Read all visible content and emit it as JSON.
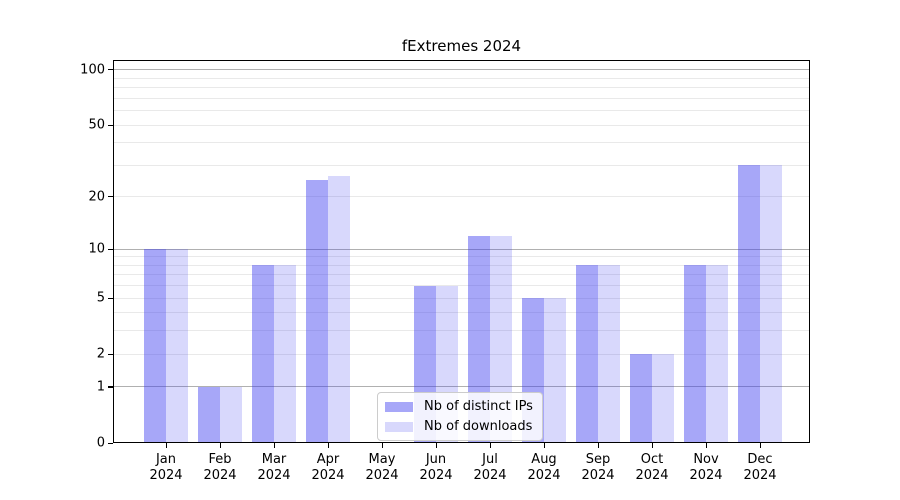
{
  "chart_data": {
    "type": "bar",
    "title": "fExtremes 2024",
    "categories": [
      "Jan 2024",
      "Feb 2024",
      "Mar 2024",
      "Apr 2024",
      "May 2024",
      "Jun 2024",
      "Jul 2024",
      "Aug 2024",
      "Sep 2024",
      "Oct 2024",
      "Nov 2024",
      "Dec 2024"
    ],
    "series": [
      {
        "name": "Nb of distinct IPs",
        "color": "rgba(60,60,240,0.45)",
        "values": [
          10,
          1,
          8,
          25,
          0,
          6,
          12,
          5,
          8,
          2,
          8,
          30
        ]
      },
      {
        "name": "Nb of downloads",
        "color": "rgba(60,60,240,0.2)",
        "values": [
          10,
          1,
          8,
          26,
          0,
          6,
          12,
          5,
          8,
          2,
          8,
          30
        ]
      }
    ],
    "yscale": "log1p",
    "ylim": [
      0,
      113
    ],
    "yticks": [
      0,
      1,
      2,
      5,
      10,
      20,
      50,
      100
    ],
    "grid": {
      "major": [
        1,
        10,
        100
      ],
      "minor": [
        2,
        3,
        4,
        5,
        6,
        7,
        8,
        9,
        20,
        30,
        40,
        50,
        60,
        70,
        80,
        90
      ],
      "major_color": "#b0b0b0",
      "minor_color": "#e9e9e9"
    },
    "legend_position": "lower center",
    "frame_color": "#000000",
    "background": "#ffffff"
  }
}
